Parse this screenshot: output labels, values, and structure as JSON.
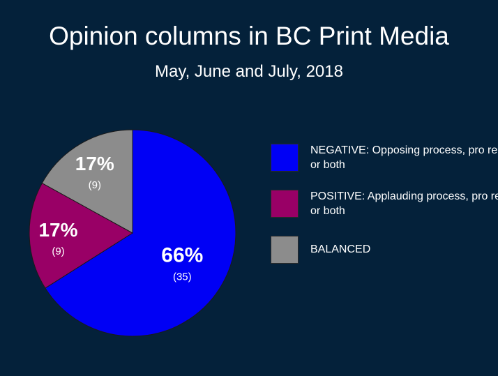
{
  "chart_data": {
    "type": "pie",
    "title": "Opinion columns in BC Print Media",
    "subtitle": "May, June and July, 2018",
    "slices": [
      {
        "percent_label": "66%",
        "count_label": "(35)",
        "value": 35,
        "color": "#0000f5"
      },
      {
        "percent_label": "17%",
        "count_label": "(9)",
        "value": 9,
        "color": "#990066"
      },
      {
        "percent_label": "17%",
        "count_label": "(9)",
        "value": 9,
        "color": "#8c8c8c"
      }
    ],
    "legend": [
      {
        "label": "NEGATIVE: Opposing process, pro rep, or both",
        "color": "#0000f5"
      },
      {
        "label": "POSITIVE: Applauding process, pro rep, or both",
        "color": "#990066"
      },
      {
        "label": "BALANCED",
        "color": "#8c8c8c"
      }
    ],
    "legend_position": "right"
  }
}
